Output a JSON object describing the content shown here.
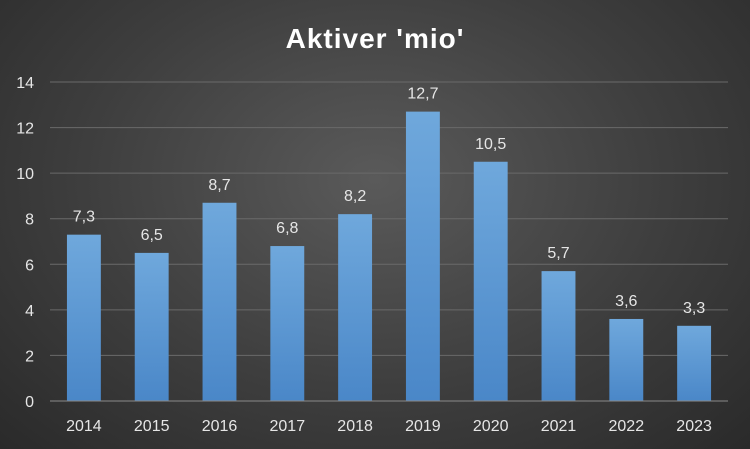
{
  "chart_data": {
    "type": "bar",
    "title": "Aktiver 'mio'",
    "categories": [
      "2014",
      "2015",
      "2016",
      "2017",
      "2018",
      "2019",
      "2020",
      "2021",
      "2022",
      "2023"
    ],
    "values": [
      7.3,
      6.5,
      8.7,
      6.8,
      8.2,
      12.7,
      10.5,
      5.7,
      3.6,
      3.3
    ],
    "data_labels": [
      "7,3",
      "6,5",
      "8,7",
      "6,8",
      "8,2",
      "12,7",
      "10,5",
      "5,7",
      "3,6",
      "3,3"
    ],
    "y_ticks": [
      "0",
      "2",
      "4",
      "6",
      "8",
      "10",
      "12",
      "14"
    ],
    "ylim": [
      0,
      14
    ],
    "grid": true,
    "legend": "none",
    "bar_color": "#5b9bd5"
  }
}
